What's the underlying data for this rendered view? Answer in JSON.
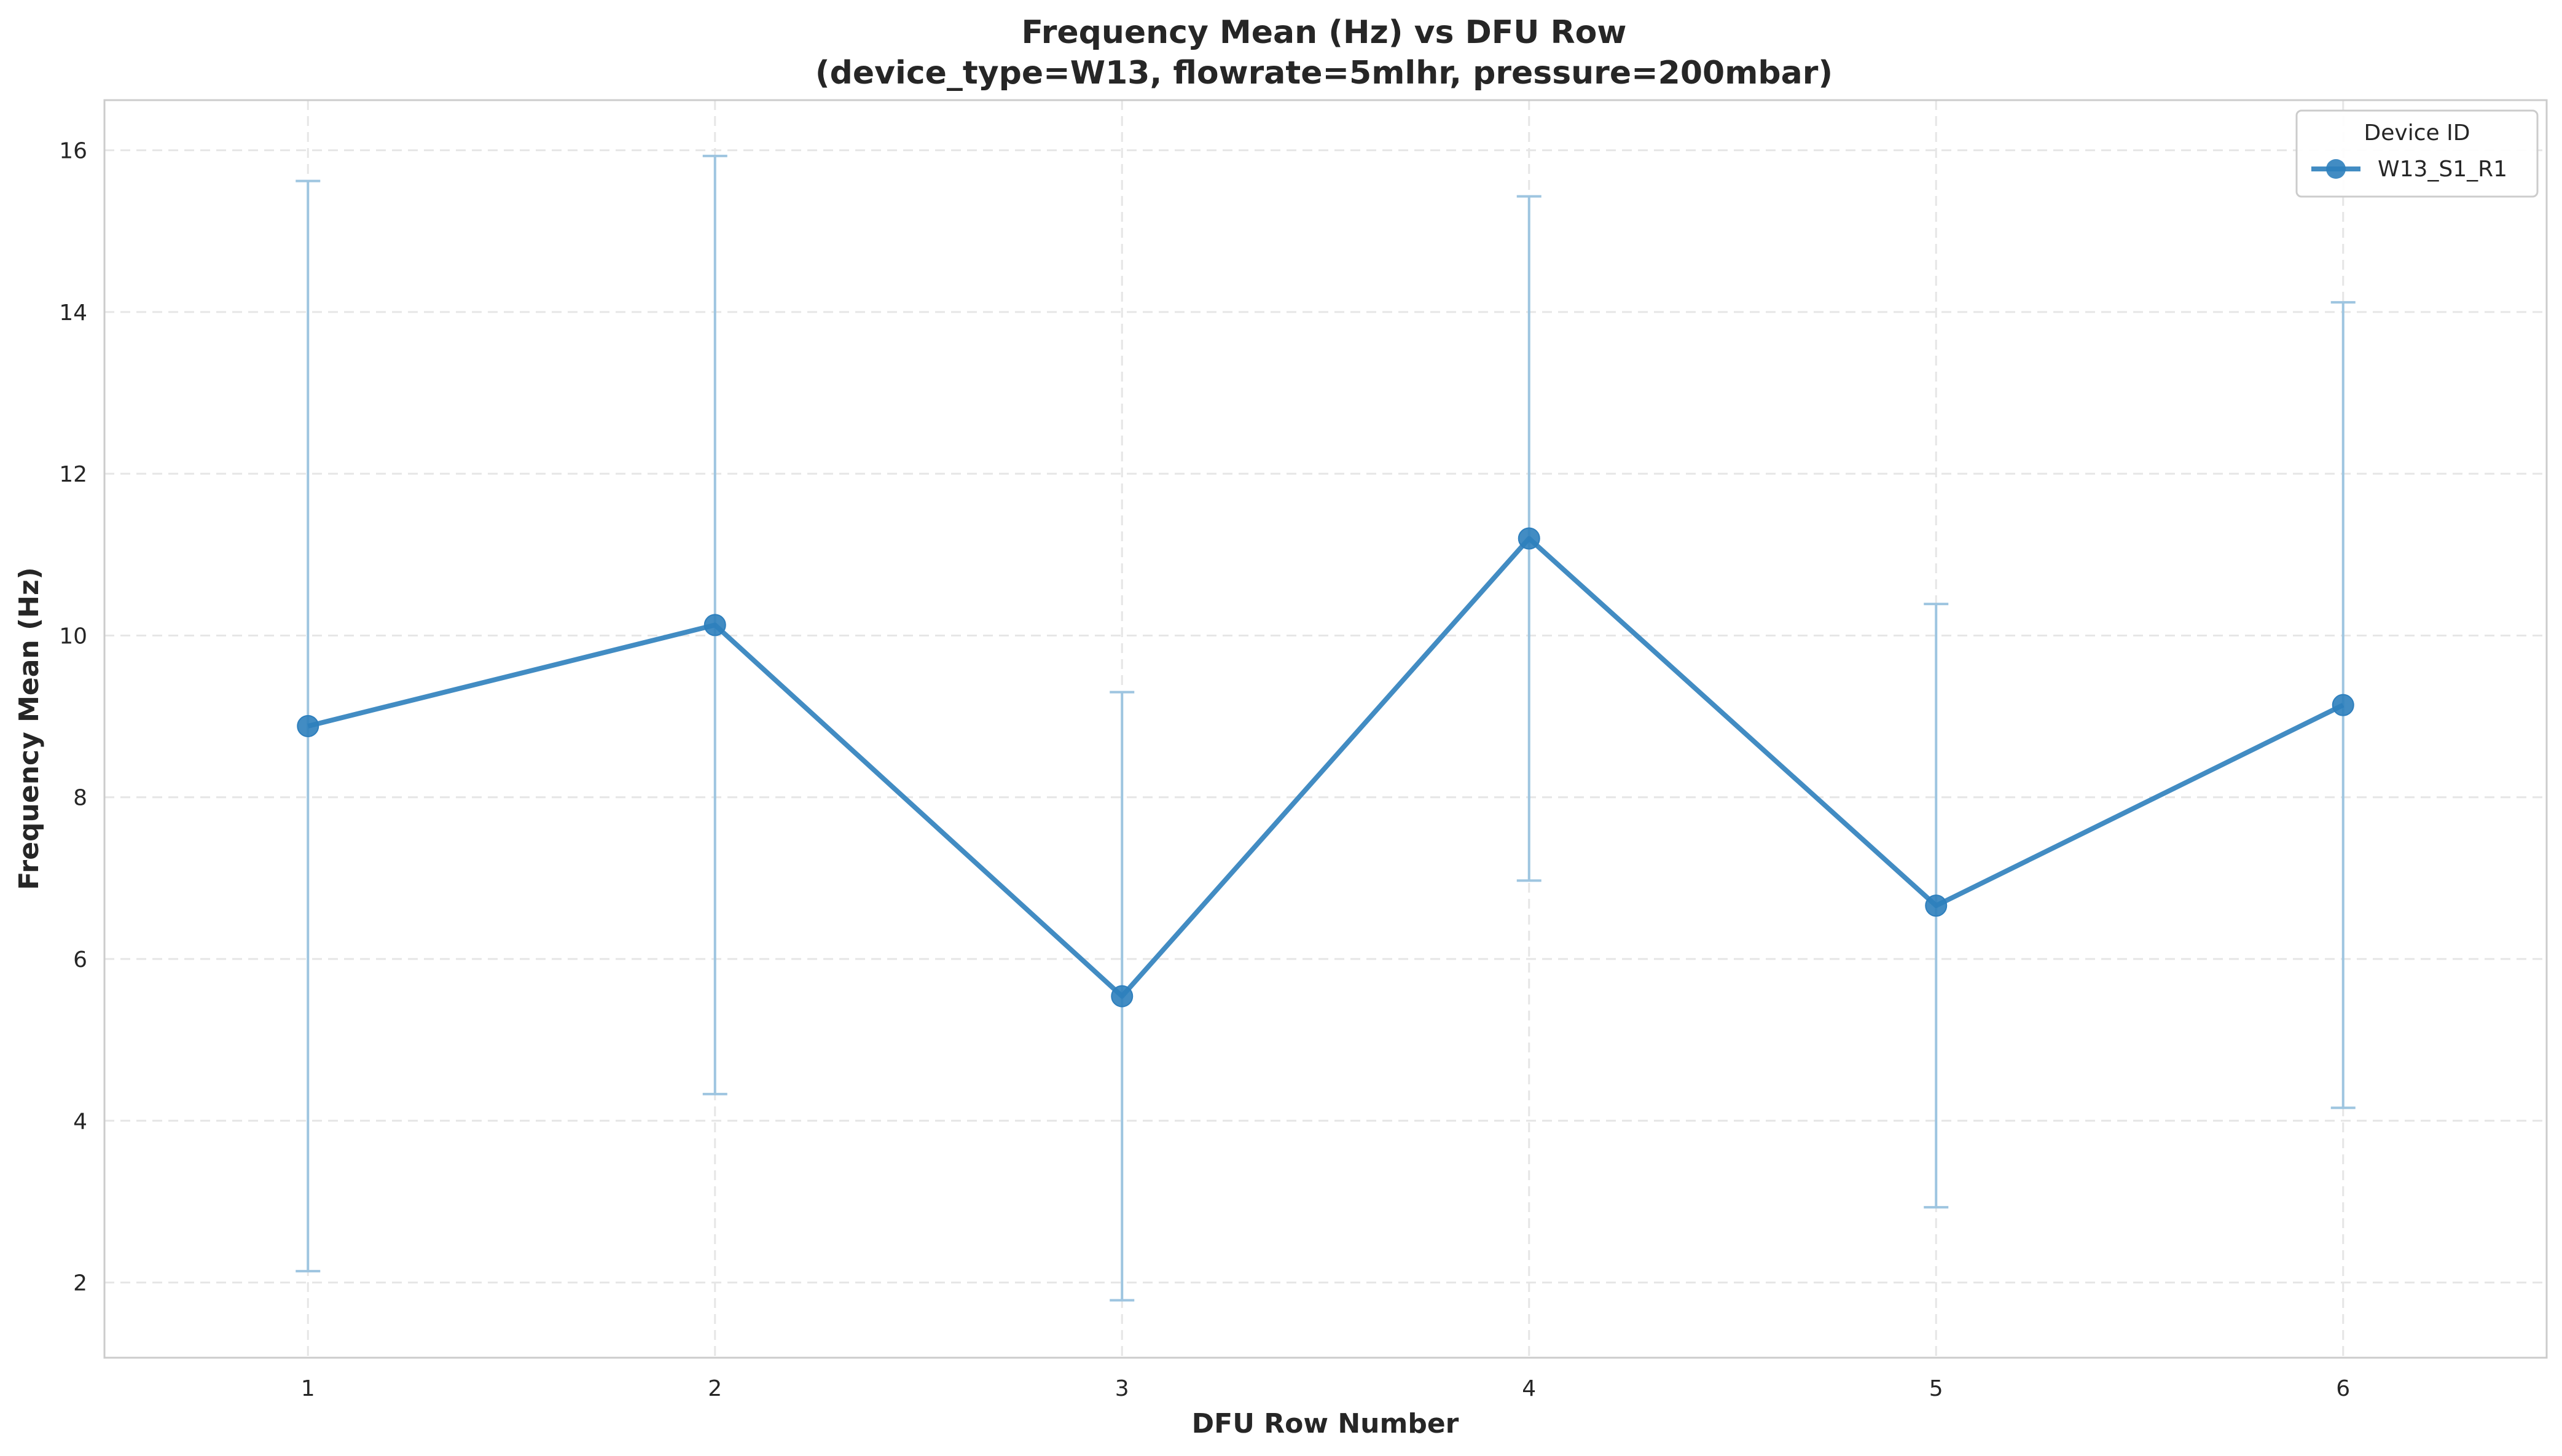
{
  "chart_data": {
    "type": "line",
    "title": "Frequency Mean (Hz) vs DFU Row",
    "subtitle": "(device_type=W13, flowrate=5mlhr, pressure=200mbar)",
    "xlabel": "DFU Row Number",
    "ylabel": "Frequency Mean (Hz)",
    "xlim": [
      0.5,
      6.5
    ],
    "ylim": [
      1.07,
      16.62
    ],
    "x_ticks": [
      1,
      2,
      3,
      4,
      5,
      6
    ],
    "y_ticks": [
      2,
      4,
      6,
      8,
      10,
      12,
      14,
      16
    ],
    "grid": true,
    "legend": {
      "title": "Device ID",
      "placement": "top-right"
    },
    "series": [
      {
        "name": "W13_S1_R1",
        "color": "#2e7fbd",
        "errorbar_color": "#9ec5e0",
        "x": [
          1,
          2,
          3,
          4,
          5,
          6
        ],
        "y": [
          8.88,
          10.13,
          5.54,
          11.2,
          6.66,
          9.14
        ],
        "yerr": [
          6.74,
          5.8,
          3.76,
          4.23,
          3.73,
          4.98
        ]
      }
    ]
  }
}
